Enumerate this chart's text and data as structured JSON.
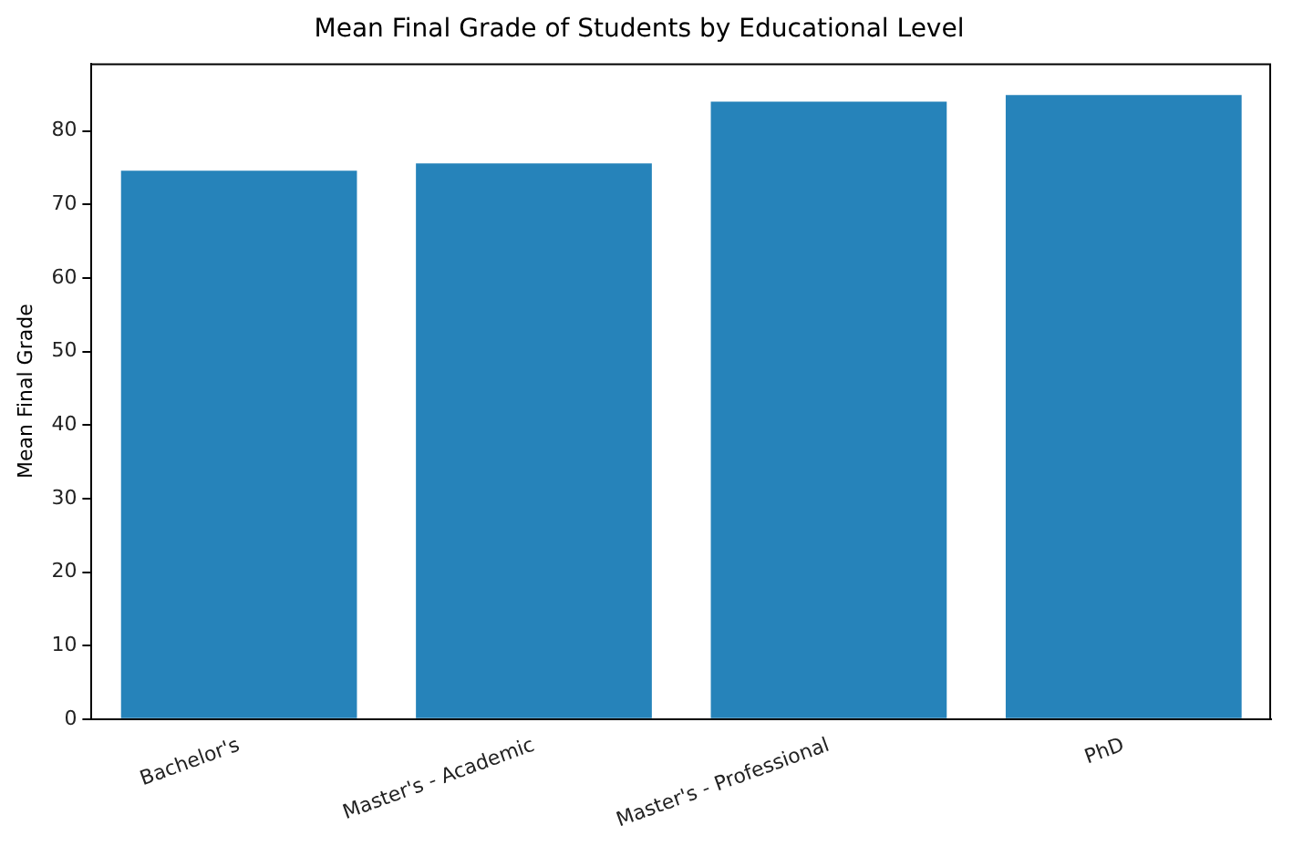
{
  "chart_data": {
    "type": "bar",
    "title": "Mean Final Grade of Students by Educational Level",
    "ylabel": "Mean Final Grade",
    "categories": [
      "Bachelor's",
      "Master's - Academic",
      "Master's - Professional",
      "PhD"
    ],
    "values": [
      74.6,
      75.6,
      84.0,
      84.9
    ],
    "color": "#2683ba",
    "ylim": [
      0,
      89.2
    ],
    "yticks": [
      0,
      10,
      20,
      30,
      40,
      50,
      60,
      70,
      80
    ],
    "grid": false
  }
}
